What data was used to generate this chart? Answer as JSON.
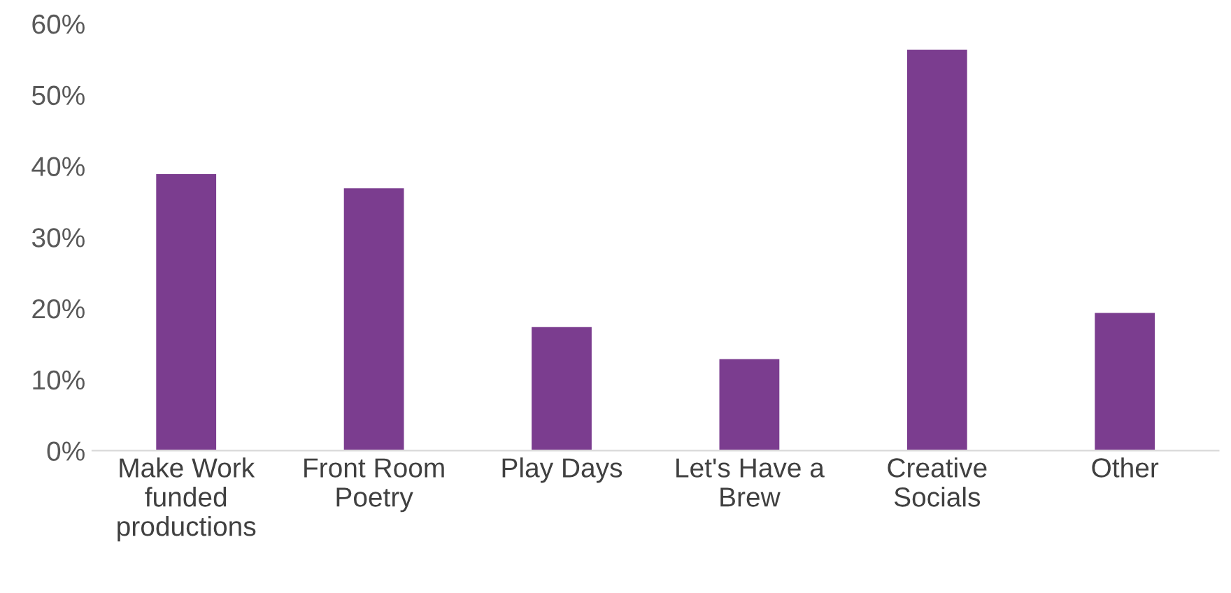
{
  "chart_data": {
    "type": "bar",
    "categories": [
      "Make Work\nfunded\nproductions",
      "Front Room\nPoetry",
      "Play Days",
      "Let's Have a\nBrew",
      "Creative\nSocials",
      "Other"
    ],
    "values": [
      39,
      37,
      17.5,
      13,
      56.5,
      19.5
    ],
    "color": "#7b3d8f",
    "ylim": [
      0,
      60
    ],
    "yticks": [
      {
        "value": 0,
        "label": "0%"
      },
      {
        "value": 10,
        "label": "10%"
      },
      {
        "value": 20,
        "label": "20%"
      },
      {
        "value": 30,
        "label": "30%"
      },
      {
        "value": 40,
        "label": "40%"
      },
      {
        "value": 50,
        "label": "50%"
      },
      {
        "value": 60,
        "label": "60%"
      }
    ],
    "grid": false,
    "legend": false
  }
}
